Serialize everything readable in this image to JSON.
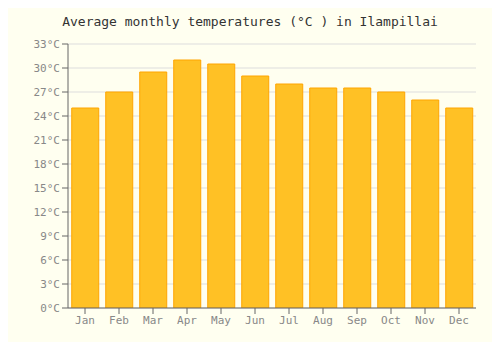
{
  "chart_data": {
    "type": "bar",
    "title": "Average monthly temperatures (°C ) in Ilampillai",
    "categories": [
      "Jan",
      "Feb",
      "Mar",
      "Apr",
      "May",
      "Jun",
      "Jul",
      "Aug",
      "Sep",
      "Oct",
      "Nov",
      "Dec"
    ],
    "values": [
      25.0,
      27.0,
      29.5,
      31.0,
      30.5,
      29.0,
      28.0,
      27.5,
      27.5,
      27.0,
      26.0,
      25.0
    ],
    "color": "#FFC125",
    "ylim": [
      0,
      33
    ],
    "yticks": [
      {
        "value": 0,
        "label": "0°C"
      },
      {
        "value": 3,
        "label": "3°C"
      },
      {
        "value": 6,
        "label": "6°C"
      },
      {
        "value": 9,
        "label": "9°C"
      },
      {
        "value": 12,
        "label": "12°C"
      },
      {
        "value": 15,
        "label": "15°C"
      },
      {
        "value": 18,
        "label": "18°C"
      },
      {
        "value": 21,
        "label": "21°C"
      },
      {
        "value": 24,
        "label": "24°C"
      },
      {
        "value": 27,
        "label": "27°C"
      },
      {
        "value": 30,
        "label": "30°C"
      },
      {
        "value": 33,
        "label": "33°C"
      }
    ],
    "grid": true
  }
}
